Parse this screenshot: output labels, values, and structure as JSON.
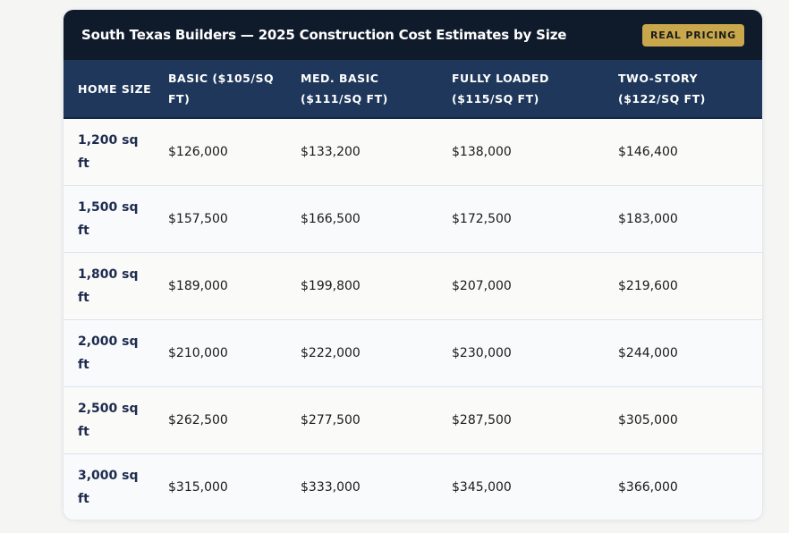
{
  "card": {
    "title": "South Texas Builders — 2025 Construction Cost Estimates by Size",
    "badge": "REAL PRICING"
  },
  "colors": {
    "title_bar": "#0f1a2b",
    "header_row": "#1e375a",
    "badge": "#c9a84c",
    "size_text": "#1e2b4f"
  },
  "table": {
    "headers": [
      "HOME SIZE",
      "BASIC ($105/SQ FT)",
      "MED. BASIC ($111/SQ FT)",
      "FULLY LOADED ($115/SQ FT)",
      "TWO-STORY ($122/SQ FT)"
    ],
    "rows": [
      [
        "1,200 sq ft",
        "$126,000",
        "$133,200",
        "$138,000",
        "$146,400"
      ],
      [
        "1,500 sq ft",
        "$157,500",
        "$166,500",
        "$172,500",
        "$183,000"
      ],
      [
        "1,800 sq ft",
        "$189,000",
        "$199,800",
        "$207,000",
        "$219,600"
      ],
      [
        "2,000 sq ft",
        "$210,000",
        "$222,000",
        "$230,000",
        "$244,000"
      ],
      [
        "2,500 sq ft",
        "$262,500",
        "$277,500",
        "$287,500",
        "$305,000"
      ],
      [
        "3,000 sq ft",
        "$315,000",
        "$333,000",
        "$345,000",
        "$366,000"
      ]
    ]
  }
}
